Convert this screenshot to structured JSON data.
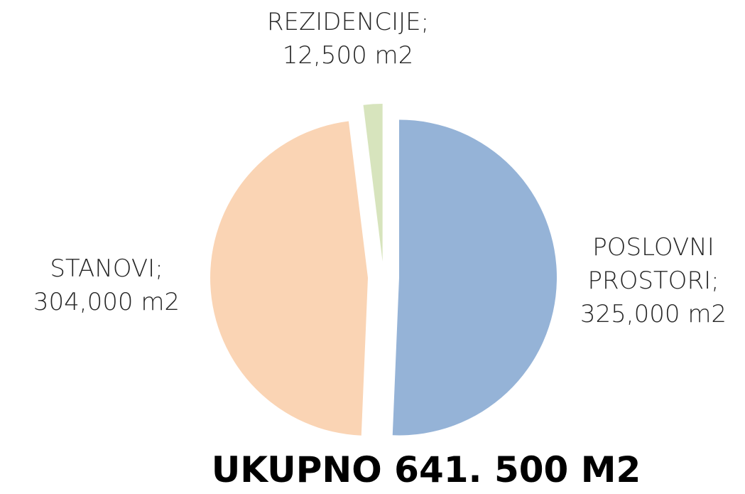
{
  "chart_data": {
    "type": "pie",
    "title": "UKUPNO 641. 500 M2",
    "categories": [
      "POSLOVNI PROSTORI;",
      "STANOVI;",
      "REZIDENCIJE;"
    ],
    "values": [
      325000,
      304000,
      12500
    ],
    "value_labels": [
      "325,000 m2",
      "304,000 m2",
      "12,500 m2"
    ],
    "colors": [
      "#95b3d7",
      "#fad4b4",
      "#d7e4bd"
    ]
  }
}
